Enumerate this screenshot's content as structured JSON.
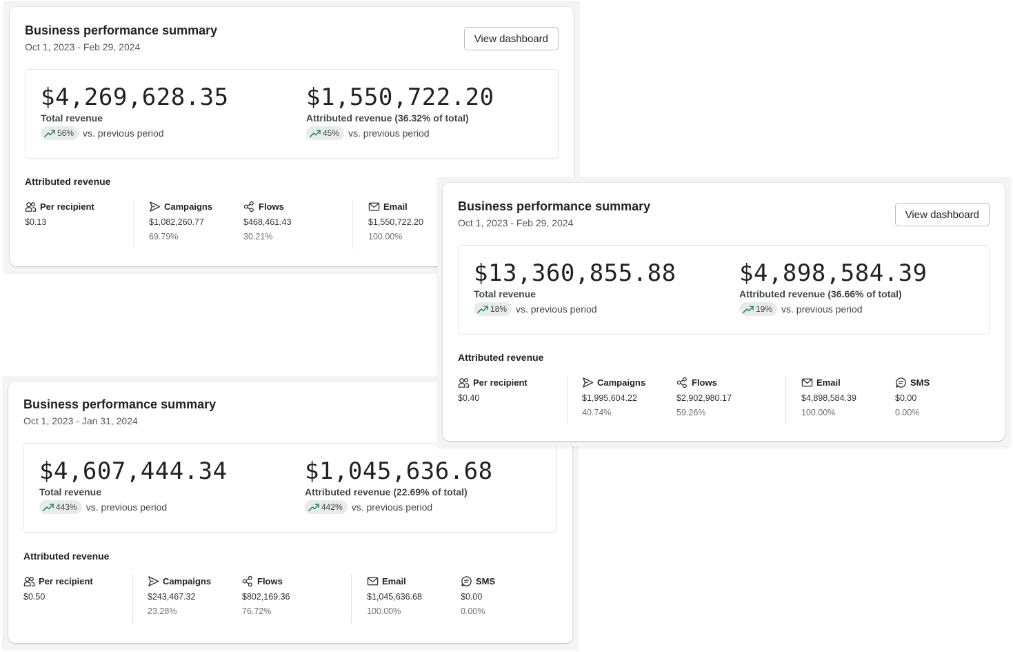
{
  "icons": {
    "trend": "trending-up-icon",
    "per_recipient": "users-icon",
    "campaigns": "send-icon",
    "flows": "flows-icon",
    "email": "mail-icon",
    "sms": "sms-icon"
  },
  "colors": {
    "trend_green": "#2c8a5a",
    "pill_bg": "#e7ecea"
  },
  "cards": [
    {
      "title": "Business performance summary",
      "date_range": "Oct 1, 2023 - Feb 29, 2024",
      "button_label": "View dashboard",
      "total_revenue": {
        "value": "$4,269,628.35",
        "label": "Total revenue",
        "change": "56%",
        "comparison": "vs. previous period"
      },
      "attributed_revenue": {
        "value": "$1,550,722.20",
        "label": "Attributed revenue (36.32% of total)",
        "change": "45%",
        "comparison": "vs. previous period"
      },
      "section_title": "Attributed revenue",
      "per_recipient": {
        "label": "Per recipient",
        "value": "$0.13"
      },
      "campaigns": {
        "label": "Campaigns",
        "value": "$1,082,260.77",
        "pct": "69.79%"
      },
      "flows": {
        "label": "Flows",
        "value": "$468,461.43",
        "pct": "30.21%"
      },
      "email": {
        "label": "Email",
        "value": "$1,550,722.20",
        "pct": "100.00%"
      }
    },
    {
      "title": "Business performance summary",
      "date_range": "Oct 1, 2023 - Feb 29, 2024",
      "button_label": "View dashboard",
      "total_revenue": {
        "value": "$13,360,855.88",
        "label": "Total revenue",
        "change": "18%",
        "comparison": "vs. previous period"
      },
      "attributed_revenue": {
        "value": "$4,898,584.39",
        "label": "Attributed revenue (36.66% of total)",
        "change": "19%",
        "comparison": "vs. previous period"
      },
      "section_title": "Attributed revenue",
      "per_recipient": {
        "label": "Per recipient",
        "value": "$0.40"
      },
      "campaigns": {
        "label": "Campaigns",
        "value": "$1,995,604.22",
        "pct": "40.74%"
      },
      "flows": {
        "label": "Flows",
        "value": "$2,902,980.17",
        "pct": "59.26%"
      },
      "email": {
        "label": "Email",
        "value": "$4,898,584.39",
        "pct": "100.00%"
      },
      "sms": {
        "label": "SMS",
        "value": "$0.00",
        "pct": "0.00%"
      }
    },
    {
      "title": "Business performance summary",
      "date_range": "Oct 1, 2023 - Jan 31, 2024",
      "total_revenue": {
        "value": "$4,607,444.34",
        "label": "Total revenue",
        "change": "443%",
        "comparison": "vs. previous period"
      },
      "attributed_revenue": {
        "value": "$1,045,636.68",
        "label": "Attributed revenue (22.69% of total)",
        "change": "442%",
        "comparison": "vs. previous period"
      },
      "section_title": "Attributed revenue",
      "per_recipient": {
        "label": "Per recipient",
        "value": "$0.50"
      },
      "campaigns": {
        "label": "Campaigns",
        "value": "$243,467.32",
        "pct": "23.28%"
      },
      "flows": {
        "label": "Flows",
        "value": "$802,169.36",
        "pct": "76.72%"
      },
      "email": {
        "label": "Email",
        "value": "$1,045,636.68",
        "pct": "100.00%"
      },
      "sms": {
        "label": "SMS",
        "value": "$0.00",
        "pct": "0.00%"
      }
    }
  ]
}
